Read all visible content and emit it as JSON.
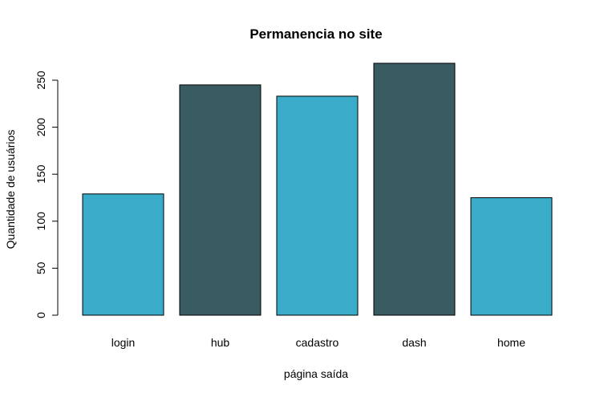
{
  "chart_data": {
    "type": "bar",
    "title": "Permanencia no site",
    "xlabel": "página saída",
    "ylabel": "Quantidade de usuários",
    "categories": [
      "login",
      "hub",
      "cadastro",
      "dash",
      "home"
    ],
    "values": [
      129,
      245,
      233,
      268,
      125
    ],
    "bar_colors": [
      "#3aabc8",
      "#395c63",
      "#3aabc8",
      "#395c63",
      "#3aabc8"
    ],
    "yticks": [
      0,
      50,
      100,
      150,
      200,
      250
    ],
    "ylim": [
      0,
      268
    ],
    "grid": false,
    "legend": "none"
  }
}
